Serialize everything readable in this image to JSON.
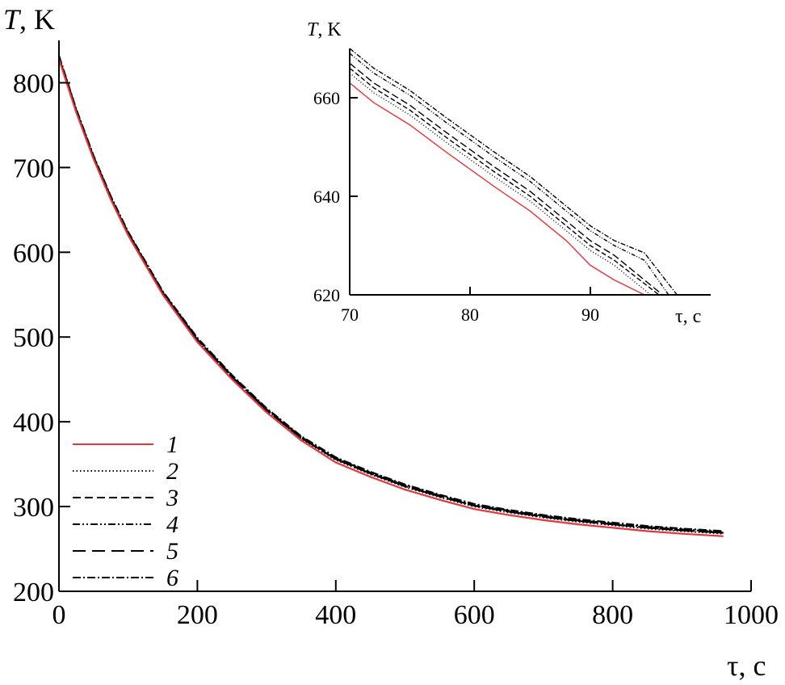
{
  "chart_data": [
    {
      "type": "line",
      "ylabel_symbol": "T",
      "ylabel_unit": ", K",
      "xlabel": "τ, c",
      "xlim": [
        0,
        1000
      ],
      "ylim": [
        200,
        850
      ],
      "xticks": [
        0,
        200,
        400,
        600,
        800,
        1000
      ],
      "yticks": [
        200,
        300,
        400,
        500,
        600,
        700,
        800
      ],
      "legend_position": "lower-left",
      "series": [
        {
          "name": "1",
          "color": "#e8343b",
          "dash": "solid",
          "x": [
            0,
            25,
            50,
            75,
            100,
            150,
            200,
            250,
            300,
            350,
            400,
            450,
            500,
            550,
            600,
            650,
            700,
            750,
            800,
            850,
            900,
            960
          ],
          "y": [
            828,
            765,
            710,
            662,
            620,
            550,
            494,
            450,
            411,
            378,
            352,
            335,
            320,
            308,
            297,
            290,
            284,
            279,
            275,
            271,
            268,
            265
          ]
        },
        {
          "name": "2",
          "color": "#000000",
          "dash": "dotted",
          "x": [
            0,
            25,
            50,
            75,
            100,
            150,
            200,
            250,
            300,
            350,
            400,
            450,
            500,
            550,
            600,
            650,
            700,
            750,
            800,
            850,
            900,
            960
          ],
          "y": [
            829,
            766,
            711,
            663,
            621,
            551,
            496,
            452,
            413,
            380,
            355,
            338,
            323,
            311,
            300,
            293,
            287,
            282,
            278,
            274,
            271,
            268
          ]
        },
        {
          "name": "3",
          "color": "#000000",
          "dash": "dashed",
          "x": [
            0,
            25,
            50,
            75,
            100,
            150,
            200,
            250,
            300,
            350,
            400,
            450,
            500,
            550,
            600,
            650,
            700,
            750,
            800,
            850,
            900,
            960
          ],
          "y": [
            830,
            767,
            712,
            664,
            622,
            552,
            497,
            453,
            414,
            381,
            356,
            339,
            324,
            312,
            301,
            294,
            288,
            283,
            279,
            275,
            272,
            269
          ]
        },
        {
          "name": "4",
          "color": "#000000",
          "dash": "dash-dot-dot",
          "x": [
            0,
            25,
            50,
            75,
            100,
            150,
            200,
            250,
            300,
            350,
            400,
            450,
            500,
            550,
            600,
            650,
            700,
            750,
            800,
            850,
            900,
            960
          ],
          "y": [
            831,
            768,
            713,
            665,
            623,
            553,
            498,
            454,
            415,
            382,
            357,
            340,
            325,
            313,
            302,
            295,
            289,
            284,
            280,
            276,
            273,
            270
          ]
        },
        {
          "name": "5",
          "color": "#000000",
          "dash": "long-dash",
          "x": [
            0,
            25,
            50,
            75,
            100,
            150,
            200,
            250,
            300,
            350,
            400,
            450,
            500,
            550,
            600,
            650,
            700,
            750,
            800,
            850,
            900,
            960
          ],
          "y": [
            830,
            767,
            712,
            664,
            622,
            552,
            497,
            453,
            414,
            381,
            356,
            339,
            324,
            312,
            301,
            294,
            288,
            283,
            279,
            275,
            272,
            269
          ]
        },
        {
          "name": "6",
          "color": "#000000",
          "dash": "dash-dot",
          "x": [
            0,
            25,
            50,
            75,
            100,
            150,
            200,
            250,
            300,
            350,
            400,
            450,
            500,
            550,
            600,
            650,
            700,
            750,
            800,
            850,
            900,
            960
          ],
          "y": [
            832,
            769,
            714,
            666,
            624,
            554,
            499,
            455,
            416,
            383,
            358,
            341,
            326,
            314,
            303,
            296,
            290,
            285,
            281,
            277,
            274,
            271
          ]
        }
      ]
    },
    {
      "type": "line",
      "ylabel_symbol": "T",
      "ylabel_unit": ", K",
      "xlabel": "τ, c",
      "xlim": [
        70,
        100
      ],
      "ylim": [
        620,
        670
      ],
      "xticks": [
        70,
        80,
        90
      ],
      "yticks": [
        620,
        640,
        660
      ],
      "series": [
        {
          "name": "1",
          "color": "#e8343b",
          "dash": "solid",
          "x": [
            70,
            72,
            75,
            78,
            80,
            82,
            85,
            88,
            90,
            92,
            94.5
          ],
          "y": [
            663,
            659,
            654.5,
            649,
            645.5,
            642,
            637,
            631,
            626,
            623,
            620
          ]
        },
        {
          "name": "2",
          "color": "#000000",
          "dash": "dotted",
          "x": [
            70,
            72,
            75,
            78,
            80,
            82,
            85,
            88,
            90,
            92,
            95
          ],
          "y": [
            665,
            661,
            656.5,
            651,
            647.5,
            644,
            639,
            633,
            629,
            626,
            620
          ]
        },
        {
          "name": "3",
          "color": "#000000",
          "dash": "dashed",
          "x": [
            70,
            72,
            75,
            78,
            80,
            82,
            85,
            88,
            90,
            92,
            95.7
          ],
          "y": [
            666,
            662,
            657.5,
            652,
            648.5,
            645,
            640,
            634,
            630,
            627,
            620
          ]
        },
        {
          "name": "4",
          "color": "#000000",
          "dash": "dash-dot-dot",
          "x": [
            70,
            72,
            75,
            78,
            80,
            82,
            85,
            88,
            90,
            92,
            94.5,
            96.5
          ],
          "y": [
            669,
            665,
            660.5,
            655,
            651.5,
            648,
            643,
            637,
            633,
            630,
            627,
            620
          ]
        },
        {
          "name": "5",
          "color": "#000000",
          "dash": "long-dash",
          "x": [
            70,
            72,
            75,
            78,
            80,
            82,
            85,
            88,
            90,
            92,
            96
          ],
          "y": [
            667,
            663,
            658.5,
            653,
            649.5,
            646,
            641,
            635,
            631,
            628,
            620
          ]
        },
        {
          "name": "6",
          "color": "#000000",
          "dash": "dash-dot",
          "x": [
            70,
            72,
            75,
            78,
            80,
            82,
            85,
            88,
            90,
            92,
            94.5,
            97.2
          ],
          "y": [
            670,
            666,
            661.5,
            656,
            652.5,
            649,
            644,
            638,
            634,
            631,
            628.5,
            620
          ]
        }
      ]
    }
  ]
}
